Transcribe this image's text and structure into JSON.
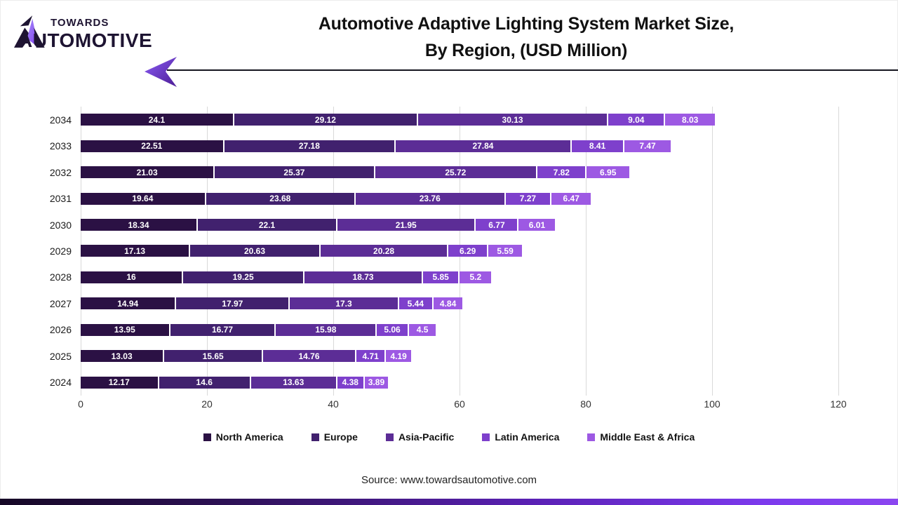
{
  "header": {
    "logo_towards": "TOWARDS",
    "logo_automotive": "AUTOMOTIVE",
    "title_line1": "Automotive Adaptive Lighting System Market Size,",
    "title_line2": "By Region, (USD Million)"
  },
  "chart_data": {
    "type": "bar",
    "orientation": "horizontal",
    "stacked": true,
    "grid": true,
    "legend_position": "bottom",
    "xlim": [
      0,
      120
    ],
    "xticks": [
      0,
      20,
      40,
      60,
      80,
      100,
      120
    ],
    "categories": [
      "2034",
      "2033",
      "2032",
      "2031",
      "2030",
      "2029",
      "2028",
      "2027",
      "2026",
      "2025",
      "2024"
    ],
    "series": [
      {
        "name": "North America",
        "color": "#2b1144",
        "values": [
          24.1,
          22.51,
          21.03,
          19.64,
          18.34,
          17.13,
          16,
          14.94,
          13.95,
          13.03,
          12.17
        ]
      },
      {
        "name": "Europe",
        "color": "#41216e",
        "values": [
          29.12,
          27.18,
          25.37,
          23.68,
          22.1,
          20.63,
          19.25,
          17.97,
          16.77,
          15.65,
          14.6
        ]
      },
      {
        "name": "Asia-Pacific",
        "color": "#5c2d96",
        "values": [
          30.13,
          27.84,
          25.72,
          23.76,
          21.95,
          20.28,
          18.73,
          17.3,
          15.98,
          14.76,
          13.63
        ]
      },
      {
        "name": "Latin America",
        "color": "#7e40cc",
        "values": [
          9.04,
          8.41,
          7.82,
          7.27,
          6.77,
          6.29,
          5.85,
          5.44,
          5.06,
          4.71,
          4.38
        ]
      },
      {
        "name": "Middle East & Africa",
        "color": "#9d59e3",
        "values": [
          8.03,
          7.47,
          6.95,
          6.47,
          6.01,
          5.59,
          5.2,
          4.84,
          4.5,
          4.19,
          3.89
        ]
      }
    ]
  },
  "footer": {
    "source": "Source: www.towardsautomotive.com"
  },
  "style": {
    "accent_dark": "#1e1432",
    "accent_purple": "#7c3aed",
    "gridline_color": "#d9d9d9"
  }
}
